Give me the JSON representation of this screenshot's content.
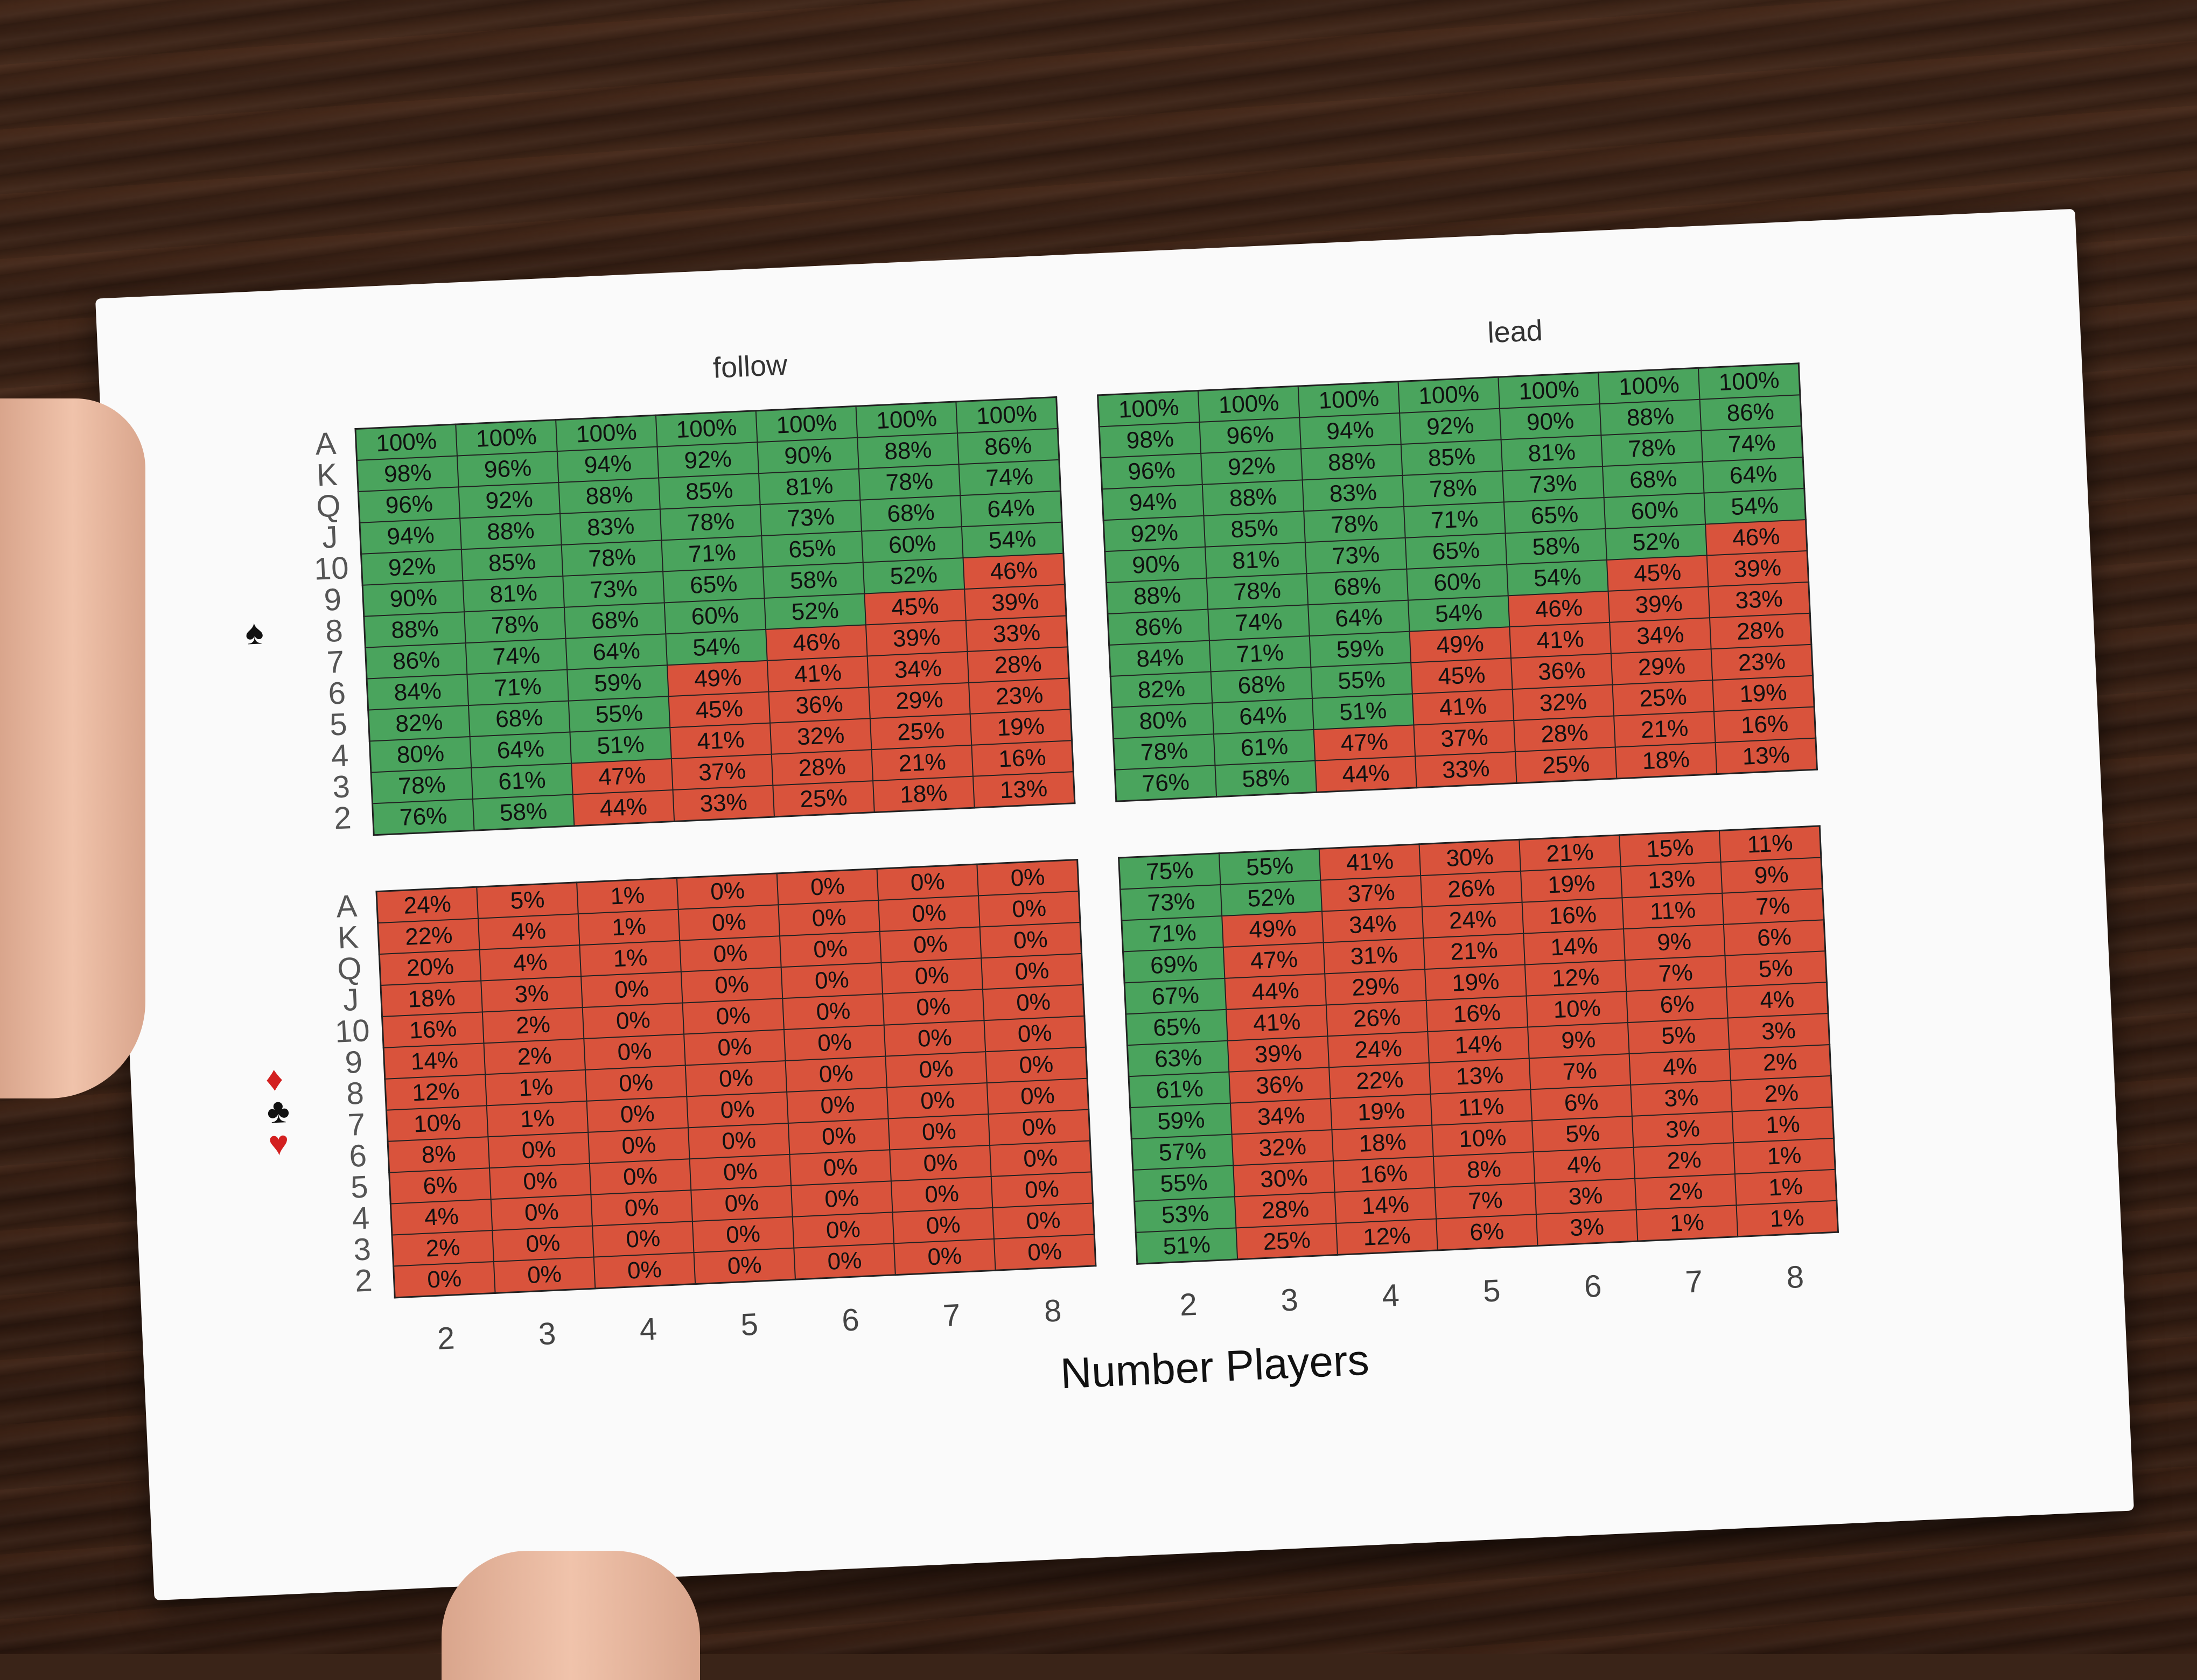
{
  "panels": {
    "follow_title": "follow",
    "lead_title": "lead"
  },
  "axis": {
    "x_title": "Number Players",
    "players": [
      "2",
      "3",
      "4",
      "5",
      "6",
      "7",
      "8"
    ],
    "ranks": [
      "A",
      "K",
      "Q",
      "J",
      "10",
      "9",
      "8",
      "7",
      "6",
      "5",
      "4",
      "3",
      "2"
    ]
  },
  "suits": {
    "trump": "spade",
    "other": [
      "diamond",
      "club",
      "heart"
    ]
  },
  "colors": {
    "green": "#4aa45d",
    "red": "#d9533c"
  },
  "threshold_percent": 50,
  "tables": {
    "follow_trump": [
      [
        "100%",
        "100%",
        "100%",
        "100%",
        "100%",
        "100%",
        "100%"
      ],
      [
        "98%",
        "96%",
        "94%",
        "92%",
        "90%",
        "88%",
        "86%"
      ],
      [
        "96%",
        "92%",
        "88%",
        "85%",
        "81%",
        "78%",
        "74%"
      ],
      [
        "94%",
        "88%",
        "83%",
        "78%",
        "73%",
        "68%",
        "64%"
      ],
      [
        "92%",
        "85%",
        "78%",
        "71%",
        "65%",
        "60%",
        "54%"
      ],
      [
        "90%",
        "81%",
        "73%",
        "65%",
        "58%",
        "52%",
        "46%"
      ],
      [
        "88%",
        "78%",
        "68%",
        "60%",
        "52%",
        "45%",
        "39%"
      ],
      [
        "86%",
        "74%",
        "64%",
        "54%",
        "46%",
        "39%",
        "33%"
      ],
      [
        "84%",
        "71%",
        "59%",
        "49%",
        "41%",
        "34%",
        "28%"
      ],
      [
        "82%",
        "68%",
        "55%",
        "45%",
        "36%",
        "29%",
        "23%"
      ],
      [
        "80%",
        "64%",
        "51%",
        "41%",
        "32%",
        "25%",
        "19%"
      ],
      [
        "78%",
        "61%",
        "47%",
        "37%",
        "28%",
        "21%",
        "16%"
      ],
      [
        "76%",
        "58%",
        "44%",
        "33%",
        "25%",
        "18%",
        "13%"
      ]
    ],
    "lead_trump": [
      [
        "100%",
        "100%",
        "100%",
        "100%",
        "100%",
        "100%",
        "100%"
      ],
      [
        "98%",
        "96%",
        "94%",
        "92%",
        "90%",
        "88%",
        "86%"
      ],
      [
        "96%",
        "92%",
        "88%",
        "85%",
        "81%",
        "78%",
        "74%"
      ],
      [
        "94%",
        "88%",
        "83%",
        "78%",
        "73%",
        "68%",
        "64%"
      ],
      [
        "92%",
        "85%",
        "78%",
        "71%",
        "65%",
        "60%",
        "54%"
      ],
      [
        "90%",
        "81%",
        "73%",
        "65%",
        "58%",
        "52%",
        "46%"
      ],
      [
        "88%",
        "78%",
        "68%",
        "60%",
        "54%",
        "45%",
        "39%"
      ],
      [
        "86%",
        "74%",
        "64%",
        "54%",
        "46%",
        "39%",
        "33%"
      ],
      [
        "84%",
        "71%",
        "59%",
        "49%",
        "41%",
        "34%",
        "28%"
      ],
      [
        "82%",
        "68%",
        "55%",
        "45%",
        "36%",
        "29%",
        "23%"
      ],
      [
        "80%",
        "64%",
        "51%",
        "41%",
        "32%",
        "25%",
        "19%"
      ],
      [
        "78%",
        "61%",
        "47%",
        "37%",
        "28%",
        "21%",
        "16%"
      ],
      [
        "76%",
        "58%",
        "44%",
        "33%",
        "25%",
        "18%",
        "13%"
      ]
    ],
    "follow_other": [
      [
        "24%",
        "5%",
        "1%",
        "0%",
        "0%",
        "0%",
        "0%"
      ],
      [
        "22%",
        "4%",
        "1%",
        "0%",
        "0%",
        "0%",
        "0%"
      ],
      [
        "20%",
        "4%",
        "1%",
        "0%",
        "0%",
        "0%",
        "0%"
      ],
      [
        "18%",
        "3%",
        "0%",
        "0%",
        "0%",
        "0%",
        "0%"
      ],
      [
        "16%",
        "2%",
        "0%",
        "0%",
        "0%",
        "0%",
        "0%"
      ],
      [
        "14%",
        "2%",
        "0%",
        "0%",
        "0%",
        "0%",
        "0%"
      ],
      [
        "12%",
        "1%",
        "0%",
        "0%",
        "0%",
        "0%",
        "0%"
      ],
      [
        "10%",
        "1%",
        "0%",
        "0%",
        "0%",
        "0%",
        "0%"
      ],
      [
        "8%",
        "0%",
        "0%",
        "0%",
        "0%",
        "0%",
        "0%"
      ],
      [
        "6%",
        "0%",
        "0%",
        "0%",
        "0%",
        "0%",
        "0%"
      ],
      [
        "4%",
        "0%",
        "0%",
        "0%",
        "0%",
        "0%",
        "0%"
      ],
      [
        "2%",
        "0%",
        "0%",
        "0%",
        "0%",
        "0%",
        "0%"
      ],
      [
        "0%",
        "0%",
        "0%",
        "0%",
        "0%",
        "0%",
        "0%"
      ]
    ],
    "lead_other": [
      [
        "75%",
        "55%",
        "41%",
        "30%",
        "21%",
        "15%",
        "11%"
      ],
      [
        "73%",
        "52%",
        "37%",
        "26%",
        "19%",
        "13%",
        "9%"
      ],
      [
        "71%",
        "49%",
        "34%",
        "24%",
        "16%",
        "11%",
        "7%"
      ],
      [
        "69%",
        "47%",
        "31%",
        "21%",
        "14%",
        "9%",
        "6%"
      ],
      [
        "67%",
        "44%",
        "29%",
        "19%",
        "12%",
        "7%",
        "5%"
      ],
      [
        "65%",
        "41%",
        "26%",
        "16%",
        "10%",
        "6%",
        "4%"
      ],
      [
        "63%",
        "39%",
        "24%",
        "14%",
        "9%",
        "5%",
        "3%"
      ],
      [
        "61%",
        "36%",
        "22%",
        "13%",
        "7%",
        "4%",
        "2%"
      ],
      [
        "59%",
        "34%",
        "19%",
        "11%",
        "6%",
        "3%",
        "2%"
      ],
      [
        "57%",
        "32%",
        "18%",
        "10%",
        "5%",
        "3%",
        "1%"
      ],
      [
        "55%",
        "30%",
        "16%",
        "8%",
        "4%",
        "2%",
        "1%"
      ],
      [
        "53%",
        "28%",
        "14%",
        "7%",
        "3%",
        "2%",
        "1%"
      ],
      [
        "51%",
        "25%",
        "12%",
        "6%",
        "3%",
        "1%",
        "1%"
      ]
    ]
  }
}
